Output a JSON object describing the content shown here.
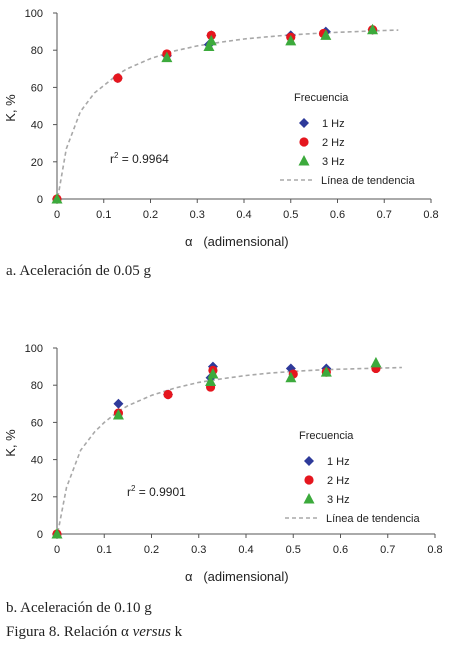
{
  "chart_data": [
    {
      "type": "scatter",
      "caption": "a. Aceleración de 0.05 g",
      "xlabel": "α   (adimensional)",
      "ylabel": "K, %",
      "xlim": [
        0,
        0.8
      ],
      "ylim": [
        0,
        100
      ],
      "xticks": [
        "0",
        "0.1",
        "0.2",
        "0.3",
        "0.4",
        "0.5",
        "0.6",
        "0.7",
        "0.8"
      ],
      "yticks": [
        "0",
        "20",
        "40",
        "60",
        "80",
        "100"
      ],
      "grid": false,
      "legend_title": "Frecuencia",
      "legend_position": "right",
      "annotation": {
        "base": "r",
        "sup": "2",
        "rest": " = 0.9964"
      },
      "series": [
        {
          "name": "1 Hz",
          "marker": "diamond",
          "color": "#2E3A9A",
          "x": [
            0,
            0.13,
            0.235,
            0.325,
            0.33,
            0.5,
            0.575,
            0.675
          ],
          "y": [
            0,
            65,
            77,
            83,
            88,
            88,
            90,
            91
          ]
        },
        {
          "name": "2 Hz",
          "marker": "circle",
          "color": "#E5161E",
          "x": [
            0,
            0.13,
            0.235,
            0.33,
            0.5,
            0.57,
            0.675
          ],
          "y": [
            0,
            65,
            78,
            88,
            87,
            89,
            91
          ]
        },
        {
          "name": "3 Hz",
          "marker": "triangle",
          "color": "#3CAA3C",
          "x": [
            0,
            0.235,
            0.325,
            0.33,
            0.5,
            0.575,
            0.675
          ],
          "y": [
            0,
            76,
            82,
            85,
            85,
            88,
            91
          ]
        },
        {
          "name": "Línea de tendencia",
          "type": "line",
          "dashed": true,
          "color": "#A8A8A8",
          "x": [
            0.002,
            0.02,
            0.05,
            0.08,
            0.1,
            0.13,
            0.15,
            0.2,
            0.25,
            0.3,
            0.35,
            0.4,
            0.45,
            0.5,
            0.55,
            0.6,
            0.65,
            0.7,
            0.73
          ],
          "y": [
            1,
            27,
            47,
            57,
            61,
            67,
            70,
            75.5,
            79.5,
            82.3,
            84.3,
            86,
            87.2,
            88.2,
            89,
            89.6,
            90.1,
            90.6,
            90.8
          ]
        }
      ]
    },
    {
      "type": "scatter",
      "caption": "b. Aceleración de 0.10 g",
      "xlabel": "α   (adimensional)",
      "ylabel": "K, %",
      "xlim": [
        0,
        0.8
      ],
      "ylim": [
        0,
        100
      ],
      "xticks": [
        "0",
        "0.1",
        "0.2",
        "0.3",
        "0.4",
        "0.5",
        "0.6",
        "0.7",
        "0.8"
      ],
      "yticks": [
        "0",
        "20",
        "40",
        "60",
        "80",
        "100"
      ],
      "grid": false,
      "legend_title": "Frecuencia",
      "legend_position": "right",
      "annotation": {
        "base": "r",
        "sup": "2",
        "rest": " = 0.9901"
      },
      "series": [
        {
          "name": "1 Hz",
          "marker": "diamond",
          "color": "#2E3A9A",
          "x": [
            0,
            0.13,
            0.235,
            0.325,
            0.33,
            0.495,
            0.57
          ],
          "y": [
            0,
            70,
            75,
            84,
            90,
            89,
            89
          ]
        },
        {
          "name": "2 Hz",
          "marker": "circle",
          "color": "#E5161E",
          "x": [
            0,
            0.13,
            0.235,
            0.325,
            0.33,
            0.5,
            0.57,
            0.675
          ],
          "y": [
            0,
            65,
            75,
            79,
            88,
            86,
            87,
            89
          ]
        },
        {
          "name": "3 Hz",
          "marker": "triangle",
          "color": "#3CAA3C",
          "x": [
            0,
            0.13,
            0.325,
            0.33,
            0.495,
            0.57,
            0.675
          ],
          "y": [
            0,
            64,
            82,
            86,
            84,
            87,
            92
          ]
        },
        {
          "name": "Línea de tendencia",
          "type": "line",
          "dashed": true,
          "color": "#A8A8A8",
          "x": [
            0.002,
            0.02,
            0.05,
            0.08,
            0.1,
            0.13,
            0.15,
            0.2,
            0.25,
            0.3,
            0.35,
            0.4,
            0.45,
            0.5,
            0.55,
            0.6,
            0.65,
            0.7,
            0.73
          ],
          "y": [
            1,
            25,
            45,
            55,
            60,
            66,
            69,
            74.5,
            78.5,
            81.5,
            83.5,
            85.2,
            86.5,
            87.4,
            88.1,
            88.6,
            89,
            89.3,
            89.5
          ]
        }
      ]
    }
  ],
  "figure_caption": {
    "prefix": "Figura 8. Relación α ",
    "italic": "versus",
    "suffix": " k"
  }
}
